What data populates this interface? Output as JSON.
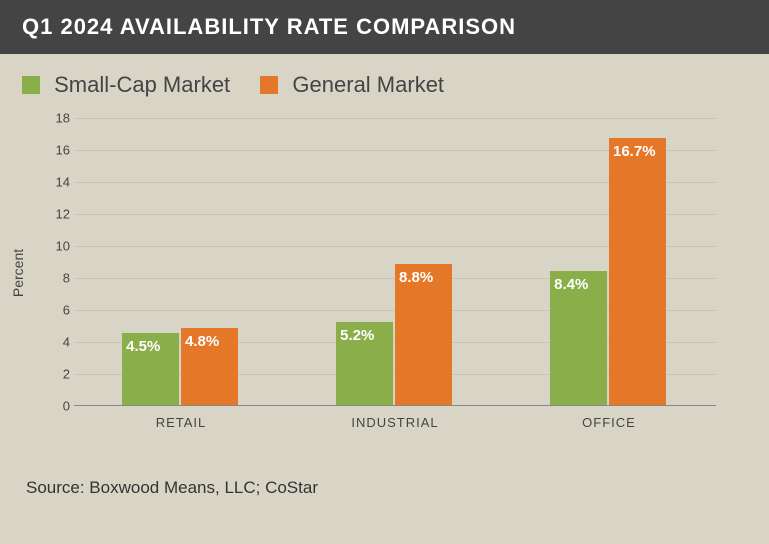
{
  "header": {
    "title": "Q1 2024 AVAILABILITY RATE COMPARISON"
  },
  "legend": {
    "items": [
      {
        "label": "Small-Cap Market",
        "color": "#8aaf4a"
      },
      {
        "label": "General Market",
        "color": "#e57828"
      }
    ]
  },
  "chart": {
    "type": "bar",
    "ylabel": "Percent",
    "ylim": [
      0,
      18
    ],
    "ytick_step": 2,
    "grid_color": "#c9c5b6",
    "background_color": "#d9d5c6",
    "bar_group_width": 0.55,
    "bar_label_color": "#ffffff",
    "bar_label_fontsize": 15,
    "axis_fontsize": 13,
    "categories": [
      "RETAIL",
      "INDUSTRIAL",
      "OFFICE"
    ],
    "series": [
      {
        "name": "Small-Cap Market",
        "color": "#8aaf4a",
        "values": [
          4.5,
          5.2,
          8.4
        ],
        "labels": [
          "4.5%",
          "5.2%",
          "8.4%"
        ]
      },
      {
        "name": "General Market",
        "color": "#e57828",
        "values": [
          4.8,
          8.8,
          16.7
        ],
        "labels": [
          "4.8%",
          "8.8%",
          "16.7%"
        ]
      }
    ]
  },
  "source": {
    "text": "Source: Boxwood Means, LLC; CoStar"
  }
}
